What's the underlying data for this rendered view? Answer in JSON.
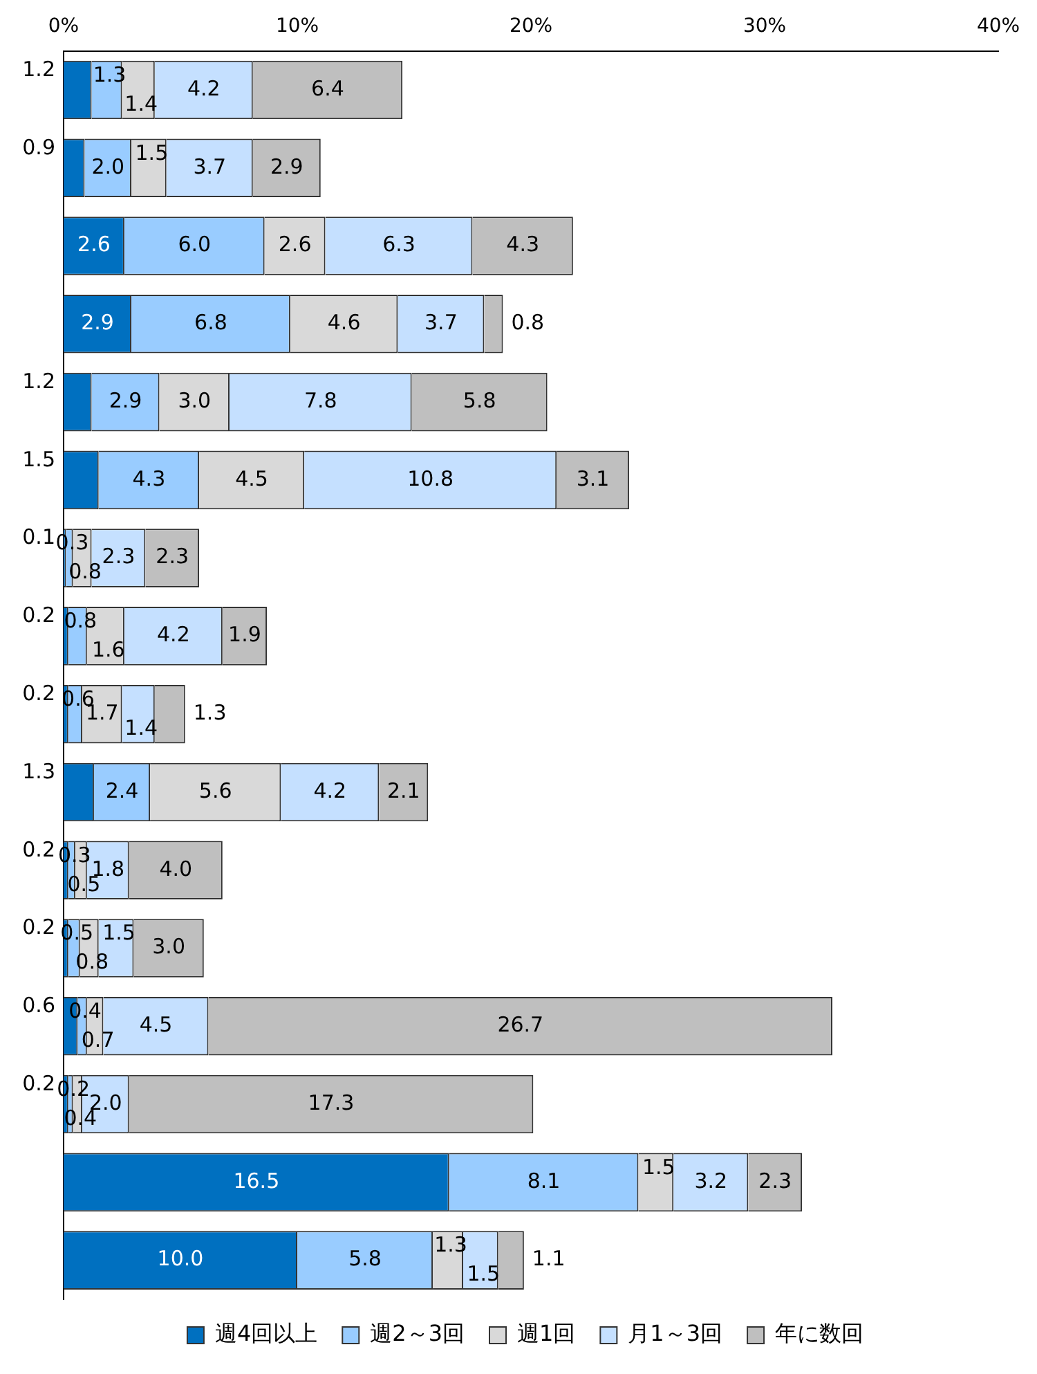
{
  "chart_data": {
    "type": "bar",
    "orientation": "horizontal",
    "stacked": true,
    "legend": "bottom",
    "grid": false,
    "categories": [
      null,
      null,
      null,
      null,
      null,
      null,
      null,
      null,
      null,
      null,
      null,
      null,
      null,
      null,
      null,
      null
    ],
    "xlim": [
      0,
      40
    ],
    "xticks": [
      {
        "value": 0,
        "label": "0%"
      },
      {
        "value": 10,
        "label": "10%"
      },
      {
        "value": 20,
        "label": "20%"
      },
      {
        "value": 30,
        "label": "30%"
      },
      {
        "value": 40,
        "label": "40%"
      }
    ],
    "series": [
      {
        "name": "週4回以上",
        "color": "#0070c0",
        "values": [
          1.2,
          0.9,
          2.6,
          2.9,
          1.2,
          1.5,
          0.1,
          0.2,
          0.2,
          1.3,
          0.2,
          0.2,
          0.6,
          0.2,
          16.5,
          10.0
        ],
        "value_labels": [
          "1.2",
          "0.9",
          "2.6",
          "2.9",
          "1.2",
          "1.5",
          "0.1",
          "0.2",
          "0.2",
          "1.3",
          "0.2",
          "0.2",
          "0.6",
          "0.2",
          "16.5",
          "10.0"
        ]
      },
      {
        "name": "週2～3回",
        "color": "#99ccff",
        "values": [
          1.3,
          2.0,
          6.0,
          6.8,
          2.9,
          4.3,
          0.3,
          0.8,
          0.6,
          2.4,
          0.3,
          0.5,
          0.4,
          0.2,
          8.1,
          5.8
        ],
        "value_labels": [
          "1.3",
          "2.0",
          "6.0",
          "6.8",
          "2.9",
          "4.3",
          "0.3",
          "0.8",
          "0.6",
          "2.4",
          "0.3",
          "0.5",
          "0.4",
          "0.2",
          "8.1",
          "5.8"
        ]
      },
      {
        "name": "週1回",
        "color": "#d9d9d9",
        "values": [
          1.4,
          1.5,
          2.6,
          4.6,
          3.0,
          4.5,
          0.8,
          1.6,
          1.7,
          5.6,
          0.5,
          0.8,
          0.7,
          0.4,
          1.5,
          1.3
        ],
        "value_labels": [
          "1.4",
          "1.5",
          "2.6",
          "4.6",
          "3.0",
          "4.5",
          "0.8",
          "1.6",
          "1.7",
          "5.6",
          "0.5",
          "0.8",
          "0.7",
          "0.4",
          "1.5",
          "1.3"
        ]
      },
      {
        "name": "月1～3回",
        "color": "#c5e0ff",
        "values": [
          4.2,
          3.7,
          6.3,
          3.7,
          7.8,
          10.8,
          2.3,
          4.2,
          1.4,
          4.2,
          1.8,
          1.5,
          4.5,
          2.0,
          3.2,
          1.5
        ],
        "value_labels": [
          "4.2",
          "3.7",
          "6.3",
          "3.7",
          "7.8",
          "10.8",
          "2.3",
          "4.2",
          "1.4",
          "4.2",
          "1.8",
          "1.5",
          "4.5",
          "2.0",
          "3.2",
          "1.5"
        ]
      },
      {
        "name": "年に数回",
        "color": "#bfbfbf",
        "values": [
          6.4,
          2.9,
          4.3,
          0.8,
          5.8,
          3.1,
          2.3,
          1.9,
          1.3,
          2.1,
          4.0,
          3.0,
          26.7,
          17.3,
          2.3,
          1.1
        ],
        "value_labels": [
          "6.4",
          "2.9",
          "4.3",
          "0.8",
          "5.8",
          "3.1",
          "2.3",
          "1.9",
          "1.3",
          "2.1",
          "4.0",
          "3.0",
          "26.7",
          "17.3",
          "2.3",
          "1.1"
        ]
      }
    ]
  }
}
